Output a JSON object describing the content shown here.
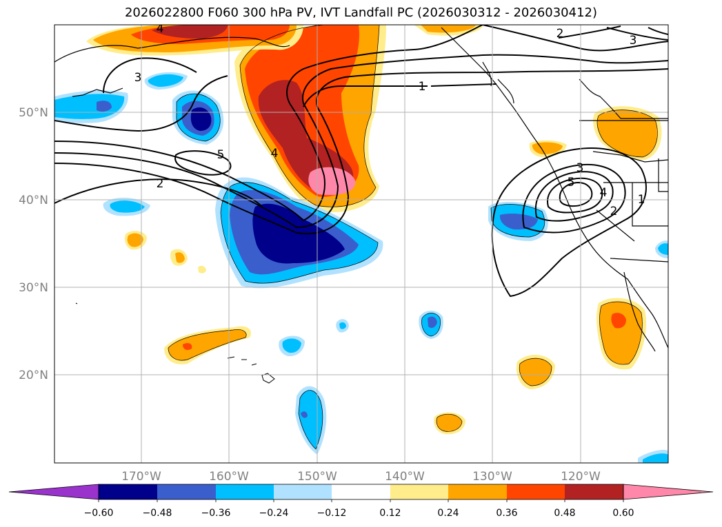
{
  "title": "2026022800 F060 300 hPa PV, IVT Landfall PC (2026030312 - 2026030412)",
  "map": {
    "lon_labels": [
      "170°W",
      "160°W",
      "150°W",
      "140°W",
      "130°W",
      "120°W"
    ],
    "lat_labels": [
      "50°N",
      "40°N",
      "30°N",
      "20°N"
    ],
    "contour_labels": [
      "1",
      "1",
      "2",
      "2",
      "2",
      "3",
      "3",
      "3",
      "4",
      "4",
      "4",
      "5",
      "5"
    ]
  },
  "colorbar": {
    "ticks": [
      "−0.60",
      "−0.48",
      "−0.36",
      "−0.24",
      "−0.12",
      "0.12",
      "0.24",
      "0.36",
      "0.48",
      "0.60"
    ],
    "colors": [
      "#9933cc",
      "#00008b",
      "#3a5fcd",
      "#00bfff",
      "#b0e2ff",
      "#ffffff",
      "#ffec8b",
      "#ffa500",
      "#ff4500",
      "#b22222",
      "#ff88aa"
    ]
  },
  "colors": {
    "neg_strong": "#00008b",
    "neg_mid": "#3a5fcd",
    "neg_light": "#00bfff",
    "neg_pale": "#b0e2ff",
    "pos_pale": "#ffec8b",
    "pos_light": "#ffa500",
    "pos_mid": "#ff4500",
    "pos_strong": "#b22222",
    "pos_max": "#ff88aa"
  }
}
